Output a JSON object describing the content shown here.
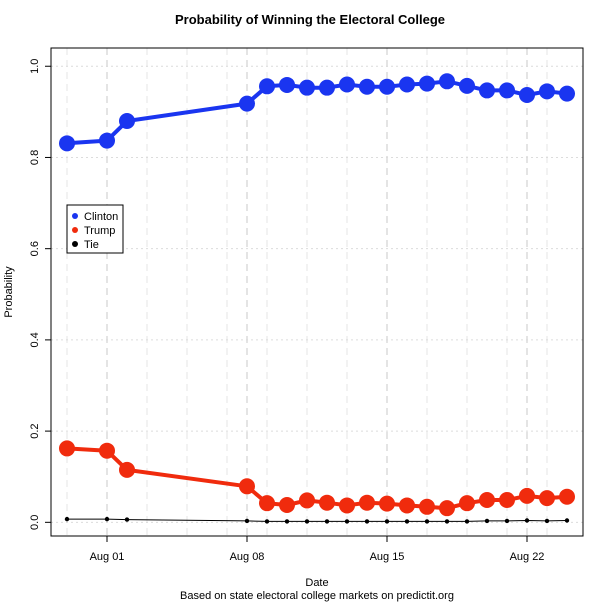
{
  "chart_data": {
    "type": "line",
    "title": "Probability of Winning the Electoral College",
    "xlabel": "Date",
    "ylabel": "Probability",
    "caption": "Based on state electoral college markets on predictit.org",
    "ylim": [
      -0.03,
      1.04
    ],
    "xlim": [
      -0.8,
      25.8
    ],
    "y_ticks": [
      0.0,
      0.2,
      0.4,
      0.6,
      0.8,
      1.0
    ],
    "y_tick_labels": [
      "0.0",
      "0.2",
      "0.4",
      "0.6",
      "0.8",
      "1.0"
    ],
    "x_ticks": [
      2,
      9,
      16,
      23
    ],
    "x_tick_labels": [
      "Aug 01",
      "Aug 08",
      "Aug 15",
      "Aug 22"
    ],
    "x_day_offset": "days since Jul 30",
    "grid": true,
    "legend": {
      "position": "left",
      "entries": [
        "Clinton",
        "Trump",
        "Tie"
      ]
    },
    "series": [
      {
        "name": "Clinton",
        "color": "#1a35f0",
        "x": [
          0,
          2,
          3,
          9,
          10,
          11,
          12,
          13,
          14,
          15,
          16,
          17,
          18,
          19,
          20,
          21,
          22,
          23,
          24,
          25
        ],
        "values": [
          0.831,
          0.837,
          0.88,
          0.918,
          0.956,
          0.959,
          0.953,
          0.953,
          0.96,
          0.955,
          0.955,
          0.96,
          0.962,
          0.967,
          0.957,
          0.947,
          0.947,
          0.937,
          0.945,
          0.94
        ]
      },
      {
        "name": "Trump",
        "color": "#f02b0d",
        "x": [
          0,
          2,
          3,
          9,
          10,
          11,
          12,
          13,
          14,
          15,
          16,
          17,
          18,
          19,
          20,
          21,
          22,
          23,
          24,
          25
        ],
        "values": [
          0.162,
          0.157,
          0.115,
          0.079,
          0.042,
          0.038,
          0.048,
          0.043,
          0.037,
          0.043,
          0.041,
          0.037,
          0.034,
          0.031,
          0.042,
          0.049,
          0.049,
          0.058,
          0.053,
          0.056
        ]
      },
      {
        "name": "Tie",
        "color": "#000000",
        "x": [
          0,
          2,
          3,
          9,
          10,
          11,
          12,
          13,
          14,
          15,
          16,
          17,
          18,
          19,
          20,
          21,
          22,
          23,
          24,
          25
        ],
        "values": [
          0.007,
          0.007,
          0.006,
          0.003,
          0.002,
          0.002,
          0.002,
          0.002,
          0.002,
          0.002,
          0.002,
          0.002,
          0.002,
          0.002,
          0.002,
          0.003,
          0.003,
          0.004,
          0.003,
          0.004
        ]
      }
    ]
  }
}
